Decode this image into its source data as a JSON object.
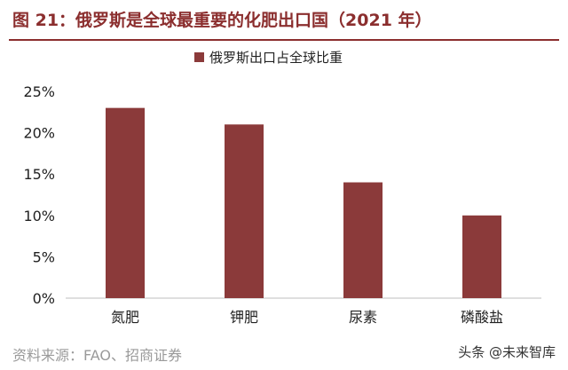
{
  "header": {
    "title": "图 21：俄罗斯是全球最重要的化肥出口国（2021 年）"
  },
  "chart_data": {
    "type": "bar",
    "categories": [
      "氮肥",
      "钾肥",
      "尿素",
      "磷酸盐"
    ],
    "series": [
      {
        "name": "俄罗斯出口占全球比重",
        "values": [
          23,
          21,
          14,
          10
        ],
        "color": "#8b3a3a"
      }
    ],
    "ylim": [
      0,
      25
    ],
    "yticks": [
      0,
      5,
      10,
      15,
      20,
      25
    ],
    "y_tick_format": "percent",
    "legend": "top-center",
    "grid": false
  },
  "footer": {
    "source": "资料来源：FAO、招商证券",
    "watermark": "头条 @未来智库"
  }
}
